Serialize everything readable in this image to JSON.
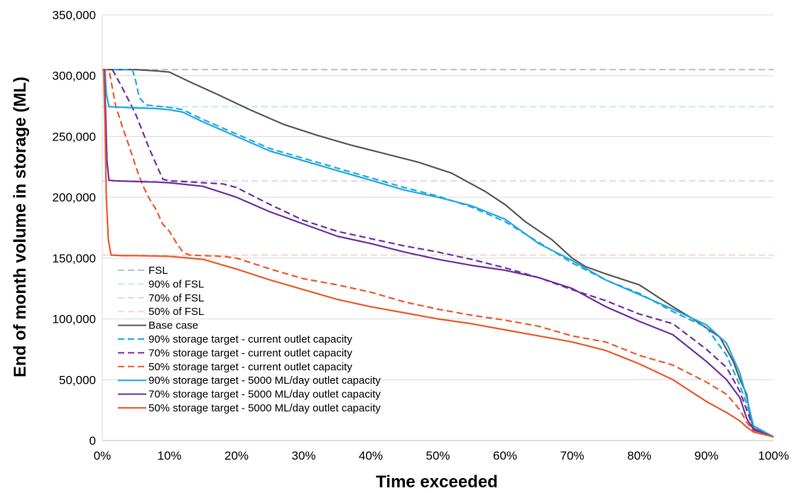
{
  "chart_data": {
    "type": "line",
    "title": "",
    "xlabel": "Time exceeded",
    "ylabel": "End of month volume in storage (ML)",
    "xlim": [
      0,
      100
    ],
    "ylim": [
      0,
      350000
    ],
    "x_ticks": [
      "0%",
      "10%",
      "20%",
      "30%",
      "40%",
      "50%",
      "60%",
      "70%",
      "80%",
      "90%",
      "100%"
    ],
    "y_ticks": [
      "0",
      "50,000",
      "100,000",
      "150,000",
      "200,000",
      "250,000",
      "300,000",
      "350,000"
    ],
    "grid": "horizontal",
    "legend_position": "bottom-left inside plot",
    "series": [
      {
        "name": "FSL",
        "color": "#bfbfbf",
        "dash": "dashed",
        "x": [
          0,
          100
        ],
        "y": [
          305000,
          305000
        ]
      },
      {
        "name": "90% of FSL",
        "color": "#c5e8f7",
        "dash": "dashed",
        "x": [
          0,
          100
        ],
        "y": [
          274500,
          274500
        ]
      },
      {
        "name": "70% of FSL",
        "color": "#e6d3f2",
        "dash": "dashed",
        "x": [
          0,
          100
        ],
        "y": [
          213500,
          213500
        ]
      },
      {
        "name": "50% of FSL",
        "color": "#f9d7c8",
        "dash": "dashed",
        "x": [
          0,
          100
        ],
        "y": [
          152500,
          152500
        ]
      },
      {
        "name": "Base case",
        "color": "#595959",
        "dash": "solid",
        "x": [
          0,
          5,
          8,
          10,
          13,
          17,
          22,
          27,
          32,
          37,
          42,
          47,
          52,
          57,
          60,
          63,
          67,
          70,
          72,
          75,
          80,
          85,
          88,
          92,
          94,
          95,
          96,
          96.5,
          97,
          100
        ],
        "y": [
          305000,
          305000,
          304000,
          303000,
          295000,
          285000,
          272000,
          260000,
          251000,
          243000,
          236000,
          229000,
          220000,
          205000,
          194000,
          180000,
          165000,
          150000,
          143000,
          137000,
          128000,
          110000,
          100000,
          85000,
          65000,
          50000,
          38000,
          20000,
          10000,
          3000
        ]
      },
      {
        "name": "90% storage target - current outlet capacity",
        "color": "#1fa9e1",
        "dash": "dashed",
        "x": [
          0,
          3,
          4.5,
          5,
          5.5,
          6.5,
          8,
          10,
          12,
          15,
          20,
          25,
          30,
          35,
          40,
          45,
          50,
          55,
          60,
          65,
          70,
          75,
          80,
          85,
          90,
          93,
          95,
          96,
          97,
          100
        ],
        "y": [
          305000,
          305000,
          305000,
          295000,
          282000,
          276000,
          275000,
          274000,
          272000,
          264000,
          252000,
          240000,
          232000,
          224000,
          216000,
          208000,
          201000,
          192000,
          180000,
          163000,
          146000,
          132000,
          121000,
          106000,
          93000,
          70000,
          45000,
          30000,
          12000,
          3000
        ]
      },
      {
        "name": "70% storage target - current outlet capacity",
        "color": "#7030a0",
        "dash": "dashed",
        "x": [
          0,
          1.5,
          3,
          5,
          7,
          9,
          10,
          12,
          15,
          18,
          20,
          25,
          30,
          35,
          40,
          45,
          50,
          55,
          60,
          65,
          70,
          75,
          80,
          85,
          90,
          93,
          95,
          96,
          97,
          100
        ],
        "y": [
          305000,
          305000,
          290000,
          268000,
          240000,
          215000,
          213500,
          213000,
          212000,
          211000,
          208000,
          194000,
          181000,
          172000,
          166000,
          160000,
          155000,
          149000,
          142000,
          134000,
          124000,
          115000,
          104000,
          96000,
          75000,
          60000,
          40000,
          25000,
          10000,
          3000
        ]
      },
      {
        "name": "50% storage target - current outlet capacity",
        "color": "#ed5a2b",
        "dash": "dashed",
        "x": [
          0,
          1,
          2,
          3,
          4,
          5,
          6,
          7,
          8,
          9,
          10,
          11,
          12,
          13,
          15,
          18,
          20,
          25,
          30,
          35,
          40,
          45,
          50,
          55,
          60,
          65,
          70,
          75,
          80,
          85,
          90,
          93,
          95,
          96,
          97,
          100
        ],
        "y": [
          305000,
          305000,
          275000,
          258000,
          242000,
          225000,
          210000,
          199000,
          190000,
          178000,
          172000,
          163000,
          155000,
          152500,
          152000,
          151500,
          150000,
          141000,
          133000,
          128000,
          122000,
          114000,
          108000,
          103000,
          99000,
          94000,
          86000,
          81000,
          70000,
          62000,
          48000,
          38000,
          25000,
          15000,
          8000,
          3000
        ]
      },
      {
        "name": "90% storage target - 5000 ML/day outlet capacity",
        "color": "#1fa9e1",
        "dash": "solid",
        "x": [
          0,
          0.4,
          0.6,
          1,
          3,
          5,
          8,
          10,
          12,
          15,
          20,
          25,
          30,
          35,
          40,
          45,
          50,
          55,
          60,
          65,
          70,
          75,
          80,
          85,
          90,
          93,
          95,
          96,
          97,
          100
        ],
        "y": [
          305000,
          305000,
          285000,
          274500,
          274000,
          273500,
          273000,
          272000,
          270000,
          262000,
          250000,
          238000,
          230000,
          222000,
          214000,
          206000,
          200000,
          193000,
          182000,
          162000,
          148000,
          132000,
          120000,
          108000,
          95000,
          80000,
          55000,
          35000,
          12000,
          3000
        ]
      },
      {
        "name": "70% storage target - 5000 ML/day outlet capacity",
        "color": "#7030a0",
        "dash": "solid",
        "x": [
          0,
          0.3,
          0.5,
          0.7,
          1,
          2,
          5,
          8,
          10,
          15,
          20,
          25,
          30,
          35,
          40,
          45,
          50,
          55,
          60,
          65,
          70,
          75,
          80,
          85,
          90,
          93,
          95,
          96,
          97,
          100
        ],
        "y": [
          305000,
          305000,
          270000,
          230000,
          214000,
          213500,
          213000,
          212500,
          212000,
          209000,
          200000,
          188000,
          178000,
          168000,
          162000,
          155000,
          149000,
          144000,
          140000,
          134000,
          125000,
          110000,
          98000,
          87000,
          65000,
          50000,
          35000,
          18000,
          9000,
          3000
        ]
      },
      {
        "name": "50% storage target - 5000 ML/day outlet capacity",
        "color": "#ed5a2b",
        "dash": "solid",
        "x": [
          0,
          0.2,
          0.4,
          0.6,
          0.9,
          1.3,
          3,
          5,
          10,
          15,
          20,
          25,
          30,
          35,
          40,
          45,
          50,
          55,
          60,
          65,
          70,
          75,
          80,
          85,
          90,
          93,
          95,
          96,
          97,
          100
        ],
        "y": [
          305000,
          305000,
          260000,
          200000,
          165000,
          152500,
          152000,
          152000,
          151500,
          149000,
          141000,
          132000,
          124000,
          116000,
          110000,
          105000,
          100000,
          96000,
          91000,
          86000,
          81000,
          74000,
          63000,
          50000,
          32000,
          23000,
          16000,
          11000,
          7000,
          3000
        ]
      }
    ]
  }
}
